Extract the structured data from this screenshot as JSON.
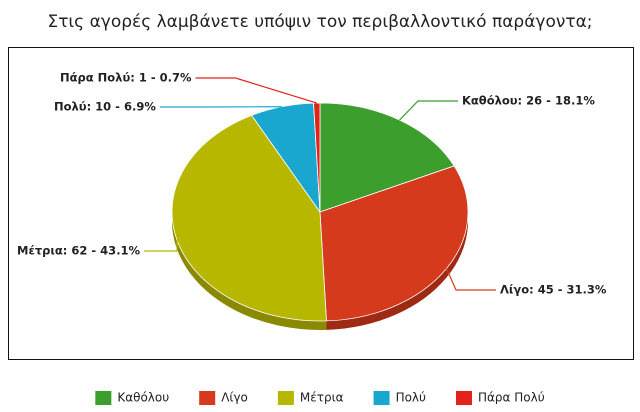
{
  "chart_data": {
    "type": "pie",
    "title": "Στις αγορές λαμβάνετε υπόψιν τον περιβαλλοντικό παράγοντα;",
    "categories": [
      "Καθόλου",
      "Λίγο",
      "Μέτρια",
      "Πολύ",
      "Πάρα Πολύ"
    ],
    "values": [
      26,
      45,
      62,
      10,
      1
    ],
    "value_labels": [
      "Καθόλου: 26 - 18.1%",
      "Λίγο: 45 - 31.3%",
      "Μέτρια: 62 - 43.1%",
      "Πολύ: 10 - 6.9%",
      "Πάρα Πολύ: 1 - 0.7%"
    ],
    "colors": [
      "#3c9e2c",
      "#d53a1d",
      "#b8b700",
      "#1aa7cf",
      "#e2231b"
    ],
    "legend": "bottom"
  }
}
